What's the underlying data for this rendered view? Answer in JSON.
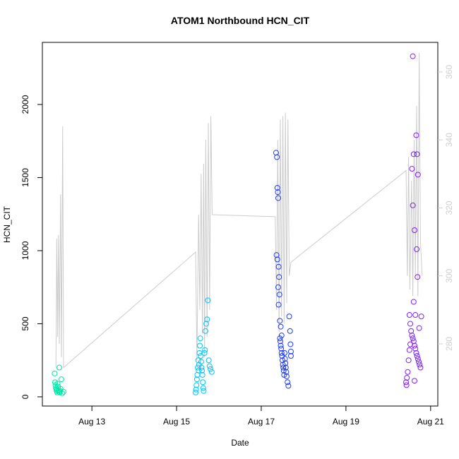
{
  "chart_data": {
    "type": "scatter",
    "title": "ATOM1 Northbound HCN_CIT",
    "x_label": "Date",
    "y_label": "HCN_CIT",
    "xlim": [
      11.83,
      21.17
    ],
    "xticks": [
      {
        "value": 13,
        "label": "Aug 13"
      },
      {
        "value": 15,
        "label": "Aug 15"
      },
      {
        "value": 17,
        "label": "Aug 17"
      },
      {
        "value": 19,
        "label": "Aug 19"
      },
      {
        "value": 21,
        "label": "Aug 21"
      }
    ],
    "ylim": [
      -63,
      2425
    ],
    "yticks": [
      0,
      500,
      1000,
      1500,
      2000
    ],
    "y2lim": [
      261.7,
      368.7
    ],
    "y2ticks": [
      280,
      300,
      320,
      340,
      360
    ],
    "series": [
      {
        "color": "#00e6a8",
        "x": [
          12.12,
          12.13,
          12.14,
          12.15,
          12.16,
          12.17,
          12.18,
          12.19,
          12.2,
          12.21,
          12.22,
          12.23,
          12.24,
          12.25,
          12.26,
          12.28,
          12.3,
          12.33
        ],
        "values": [
          160,
          100,
          80,
          60,
          50,
          40,
          30,
          90,
          70,
          45,
          35,
          200,
          30,
          40,
          55,
          120,
          25,
          35
        ]
      },
      {
        "color": "#00c4ff",
        "x": [
          15.45,
          15.46,
          15.47,
          15.48,
          15.49,
          15.5,
          15.51,
          15.52,
          15.53,
          15.54,
          15.55,
          15.56,
          15.57,
          15.58,
          15.59,
          15.6,
          15.61,
          15.62,
          15.63,
          15.64,
          15.66,
          15.67,
          15.68,
          15.7,
          15.72,
          15.74,
          15.76,
          15.78,
          15.8,
          15.83
        ],
        "values": [
          30,
          50,
          80,
          120,
          150,
          200,
          250,
          180,
          220,
          300,
          350,
          400,
          280,
          240,
          200,
          180,
          150,
          100,
          60,
          40,
          300,
          320,
          450,
          500,
          530,
          660,
          250,
          210,
          190,
          170
        ]
      },
      {
        "color": "#1f3cff",
        "x": [
          17.35,
          17.37,
          17.38,
          17.39,
          17.4,
          17.36,
          17.38,
          17.41,
          17.42,
          17.4,
          17.43,
          17.41,
          17.44,
          17.45,
          17.46,
          17.47,
          17.48,
          17.49,
          17.5,
          17.51,
          17.52,
          17.53,
          17.54,
          17.44,
          17.46,
          17.48,
          17.55,
          17.56,
          17.57,
          17.58,
          17.59,
          17.6,
          17.62,
          17.64,
          17.66,
          17.68,
          17.69,
          17.7,
          17.7
        ],
        "values": [
          1670,
          1640,
          1430,
          1400,
          1360,
          970,
          940,
          890,
          820,
          750,
          700,
          630,
          400,
          380,
          350,
          330,
          300,
          280,
          250,
          220,
          200,
          180,
          150,
          520,
          480,
          420,
          300,
          260,
          230,
          200,
          170,
          140,
          100,
          75,
          550,
          450,
          360,
          310,
          280
        ]
      },
      {
        "color": "#7f1fff",
        "x": [
          20.58,
          20.66,
          20.6,
          20.68,
          20.56,
          20.7,
          20.58,
          20.62,
          20.67,
          20.69,
          20.6,
          20.5,
          20.64,
          20.52,
          20.54,
          20.56,
          20.58,
          20.6,
          20.62,
          20.64,
          20.66,
          20.68,
          20.7,
          20.72,
          20.74,
          20.76,
          20.46,
          20.44,
          20.42,
          20.43,
          20.62,
          20.48,
          20.5,
          20.52,
          20.73,
          20.78
        ],
        "values": [
          2330,
          1790,
          1660,
          1660,
          1560,
          1520,
          1310,
          1140,
          1010,
          820,
          650,
          560,
          560,
          500,
          450,
          420,
          400,
          380,
          350,
          330,
          300,
          280,
          260,
          240,
          220,
          200,
          170,
          130,
          100,
          80,
          110,
          250,
          320,
          360,
          470,
          550
        ]
      },
      {
        "type": "line",
        "axis": "y2",
        "color": "#cccccc",
        "x": [
          12.15,
          12.17,
          12.19,
          12.21,
          12.23,
          12.26,
          12.28,
          12.31,
          12.33,
          15.45,
          15.48,
          15.52,
          15.55,
          15.58,
          15.61,
          15.64,
          15.66,
          15.69,
          15.72,
          15.75,
          15.78,
          15.81,
          15.84,
          17.33,
          17.36,
          17.39,
          17.42,
          17.45,
          17.48,
          17.51,
          17.54,
          17.57,
          17.6,
          17.63,
          17.66,
          17.7,
          20.42,
          20.45,
          20.48,
          20.51,
          20.55,
          20.58,
          20.61,
          20.64,
          20.67,
          20.7,
          20.73,
          20.76,
          20.8
        ],
        "values": [
          273,
          311,
          282,
          312,
          280,
          324,
          276,
          344,
          273,
          307,
          275,
          318,
          290,
          330,
          283,
          333,
          276,
          340,
          282,
          345,
          290,
          347,
          318,
          317.4,
          290,
          340,
          283.5,
          346,
          288,
          347,
          286,
          348,
          292,
          346,
          300,
          304,
          331,
          300,
          335,
          296,
          328,
          294,
          340,
          300,
          350,
          294,
          365.6,
          310,
          300
        ]
      }
    ]
  }
}
